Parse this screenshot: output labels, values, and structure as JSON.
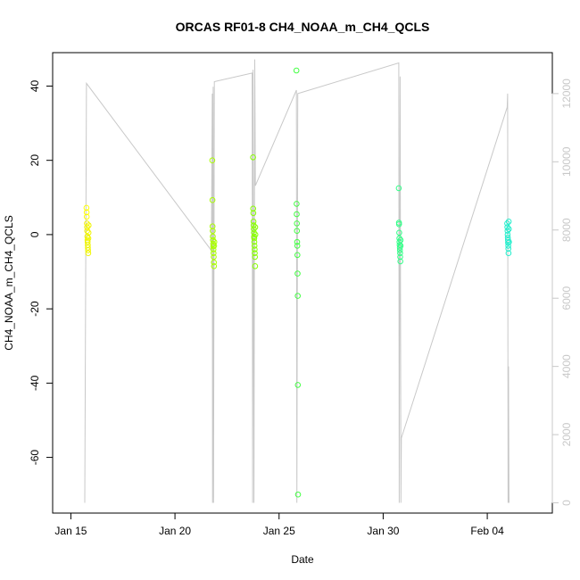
{
  "chart_data": {
    "type": "scatter",
    "title": "ORCAS RF01-8 CH4_NOAA_m_CH4_QCLS",
    "xlabel": "Date",
    "ylabel": "CH4_NOAA_m_CH4_QCLS",
    "x_axis": {
      "type": "date",
      "range": [
        "2016-01-14T03:00",
        "2016-02-07T03:00"
      ],
      "ticks": [
        {
          "date": "2016-01-15",
          "label": "Jan 15"
        },
        {
          "date": "2016-01-20",
          "label": "Jan 20"
        },
        {
          "date": "2016-01-25",
          "label": "Jan 25"
        },
        {
          "date": "2016-01-30",
          "label": "Jan 30"
        },
        {
          "date": "2016-02-04",
          "label": "Feb 04"
        }
      ]
    },
    "y_axis_left": {
      "range": [
        -75,
        49
      ],
      "ticks": [
        -60,
        -40,
        -20,
        0,
        20,
        40
      ]
    },
    "y_axis_right": {
      "range": [
        -300,
        13200
      ],
      "ticks": [
        0,
        2000,
        4000,
        6000,
        8000,
        10000,
        12000
      ],
      "color": "#c8c8c8"
    },
    "grid": false,
    "series": [
      {
        "marker": "open-circle",
        "axis": "left",
        "points": [
          {
            "date": "2016-01-15T18:00",
            "y": 7.2,
            "color": "#ffff00"
          },
          {
            "date": "2016-01-15T18:10",
            "y": 6.0,
            "color": "#ffff00"
          },
          {
            "date": "2016-01-15T18:20",
            "y": 4.8,
            "color": "#ffff00"
          },
          {
            "date": "2016-01-15T18:30",
            "y": 3.0,
            "color": "#f5f500"
          },
          {
            "date": "2016-01-15T18:40",
            "y": 2.0,
            "color": "#f5f500"
          },
          {
            "date": "2016-01-15T18:50",
            "y": 1.0,
            "color": "#f5f500"
          },
          {
            "date": "2016-01-15T19:00",
            "y": -0.5,
            "color": "#f0f500"
          },
          {
            "date": "2016-01-15T19:10",
            "y": -1.5,
            "color": "#f0f500"
          },
          {
            "date": "2016-01-15T19:20",
            "y": -2.0,
            "color": "#f0f500"
          },
          {
            "date": "2016-01-15T19:30",
            "y": -2.8,
            "color": "#f0f500"
          },
          {
            "date": "2016-01-15T19:40",
            "y": -3.5,
            "color": "#f0f500"
          },
          {
            "date": "2016-01-15T19:50",
            "y": -4.2,
            "color": "#f0f500"
          },
          {
            "date": "2016-01-15T20:00",
            "y": -5.0,
            "color": "#f0f500"
          },
          {
            "date": "2016-01-15T20:10",
            "y": -1.0,
            "color": "#f0f500"
          },
          {
            "date": "2016-01-15T20:20",
            "y": 0.5,
            "color": "#f0f500"
          },
          {
            "date": "2016-01-15T20:30",
            "y": 2.5,
            "color": "#f0f500"
          },
          {
            "date": "2016-01-21T19:00",
            "y": 20.0,
            "color": "#aaff00"
          },
          {
            "date": "2016-01-21T19:10",
            "y": 9.3,
            "color": "#aaff00"
          },
          {
            "date": "2016-01-21T19:20",
            "y": 2.2,
            "color": "#aaff00"
          },
          {
            "date": "2016-01-21T19:30",
            "y": 1.0,
            "color": "#aaff00"
          },
          {
            "date": "2016-01-21T19:40",
            "y": -0.5,
            "color": "#aaff00"
          },
          {
            "date": "2016-01-21T19:50",
            "y": -1.5,
            "color": "#aaff00"
          },
          {
            "date": "2016-01-21T20:00",
            "y": -2.5,
            "color": "#aaff00"
          },
          {
            "date": "2016-01-21T20:10",
            "y": -3.2,
            "color": "#aaff00"
          },
          {
            "date": "2016-01-21T20:20",
            "y": -4.0,
            "color": "#aaff00"
          },
          {
            "date": "2016-01-21T20:30",
            "y": -5.0,
            "color": "#aaff00"
          },
          {
            "date": "2016-01-21T20:40",
            "y": -6.0,
            "color": "#aaff00"
          },
          {
            "date": "2016-01-21T20:50",
            "y": -7.5,
            "color": "#aaff00"
          },
          {
            "date": "2016-01-21T21:00",
            "y": -8.5,
            "color": "#aaff00"
          },
          {
            "date": "2016-01-21T21:10",
            "y": -3.0,
            "color": "#aaff00"
          },
          {
            "date": "2016-01-21T21:20",
            "y": -2.0,
            "color": "#aaff00"
          },
          {
            "date": "2016-01-23T18:00",
            "y": 20.8,
            "color": "#88ff00"
          },
          {
            "date": "2016-01-23T18:10",
            "y": 7.0,
            "color": "#88ff00"
          },
          {
            "date": "2016-01-23T18:20",
            "y": 5.8,
            "color": "#88ff00"
          },
          {
            "date": "2016-01-23T18:30",
            "y": 3.5,
            "color": "#88ff00"
          },
          {
            "date": "2016-01-23T18:40",
            "y": 2.5,
            "color": "#88ff00"
          },
          {
            "date": "2016-01-23T18:50",
            "y": 1.5,
            "color": "#88ff00"
          },
          {
            "date": "2016-01-23T19:00",
            "y": 0.5,
            "color": "#88ff00"
          },
          {
            "date": "2016-01-23T19:10",
            "y": -0.5,
            "color": "#88ff00"
          },
          {
            "date": "2016-01-23T19:20",
            "y": -1.0,
            "color": "#88ff00"
          },
          {
            "date": "2016-01-23T19:30",
            "y": -2.0,
            "color": "#88ff00"
          },
          {
            "date": "2016-01-23T19:40",
            "y": -3.0,
            "color": "#88ff00"
          },
          {
            "date": "2016-01-23T19:50",
            "y": -4.0,
            "color": "#88ff00"
          },
          {
            "date": "2016-01-23T20:00",
            "y": -5.0,
            "color": "#88ff00"
          },
          {
            "date": "2016-01-23T20:10",
            "y": -6.0,
            "color": "#88ff00"
          },
          {
            "date": "2016-01-23T20:20",
            "y": -8.5,
            "color": "#88ff00"
          },
          {
            "date": "2016-01-23T20:30",
            "y": 2.0,
            "color": "#88ff00"
          },
          {
            "date": "2016-01-23T20:40",
            "y": 0.0,
            "color": "#88ff00"
          },
          {
            "date": "2016-01-25T20:00",
            "y": 44.2,
            "color": "#44ff44"
          },
          {
            "date": "2016-01-25T20:10",
            "y": 8.3,
            "color": "#44ff44"
          },
          {
            "date": "2016-01-25T20:20",
            "y": 5.5,
            "color": "#44ff44"
          },
          {
            "date": "2016-01-25T20:30",
            "y": 3.0,
            "color": "#44ff44"
          },
          {
            "date": "2016-01-25T20:40",
            "y": 1.0,
            "color": "#44ff44"
          },
          {
            "date": "2016-01-25T20:50",
            "y": -2.0,
            "color": "#44ff44"
          },
          {
            "date": "2016-01-25T21:00",
            "y": -3.0,
            "color": "#44ff44"
          },
          {
            "date": "2016-01-25T21:10",
            "y": -5.5,
            "color": "#44ff44"
          },
          {
            "date": "2016-01-25T21:20",
            "y": -10.5,
            "color": "#44ff44"
          },
          {
            "date": "2016-01-25T21:30",
            "y": -16.5,
            "color": "#44ff44"
          },
          {
            "date": "2016-01-25T21:40",
            "y": -40.5,
            "color": "#44ff44"
          },
          {
            "date": "2016-01-25T21:50",
            "y": -70.0,
            "color": "#44ff44"
          },
          {
            "date": "2016-01-30T18:00",
            "y": 12.5,
            "color": "#33ff88"
          },
          {
            "date": "2016-01-30T18:10",
            "y": 3.2,
            "color": "#33ff88"
          },
          {
            "date": "2016-01-30T18:20",
            "y": 2.8,
            "color": "#33ff88"
          },
          {
            "date": "2016-01-30T18:30",
            "y": 0.5,
            "color": "#33ff88"
          },
          {
            "date": "2016-01-30T18:40",
            "y": -1.0,
            "color": "#33ff88"
          },
          {
            "date": "2016-01-30T18:50",
            "y": -2.0,
            "color": "#33ff88"
          },
          {
            "date": "2016-01-30T19:00",
            "y": -2.8,
            "color": "#33ff88"
          },
          {
            "date": "2016-01-30T19:10",
            "y": -3.5,
            "color": "#33ff88"
          },
          {
            "date": "2016-01-30T19:20",
            "y": -4.2,
            "color": "#33ff88"
          },
          {
            "date": "2016-01-30T19:30",
            "y": -5.0,
            "color": "#33ff88"
          },
          {
            "date": "2016-01-30T19:40",
            "y": -6.0,
            "color": "#33ff88"
          },
          {
            "date": "2016-01-30T19:50",
            "y": -7.2,
            "color": "#33ff88"
          },
          {
            "date": "2016-01-30T20:00",
            "y": -1.5,
            "color": "#33ff88"
          },
          {
            "date": "2016-01-30T20:10",
            "y": -3.0,
            "color": "#33ff88"
          },
          {
            "date": "2016-02-04T23:00",
            "y": 3.0,
            "color": "#22eecc"
          },
          {
            "date": "2016-02-04T23:10",
            "y": 2.0,
            "color": "#22eecc"
          },
          {
            "date": "2016-02-04T23:20",
            "y": 1.0,
            "color": "#22eecc"
          },
          {
            "date": "2016-02-04T23:30",
            "y": 0.0,
            "color": "#22eecc"
          },
          {
            "date": "2016-02-04T23:40",
            "y": -0.8,
            "color": "#22eecc"
          },
          {
            "date": "2016-02-04T23:50",
            "y": -1.5,
            "color": "#22eecc"
          },
          {
            "date": "2016-02-05T00:00",
            "y": -2.2,
            "color": "#22eecc"
          },
          {
            "date": "2016-02-05T00:10",
            "y": -3.0,
            "color": "#22eecc"
          },
          {
            "date": "2016-02-05T00:20",
            "y": -3.8,
            "color": "#22eecc"
          },
          {
            "date": "2016-02-05T00:30",
            "y": -5.0,
            "color": "#22eecc"
          },
          {
            "date": "2016-02-05T00:40",
            "y": 3.5,
            "color": "#22eecc"
          },
          {
            "date": "2016-02-05T00:50",
            "y": 1.5,
            "color": "#22eecc"
          },
          {
            "date": "2016-02-05T01:00",
            "y": -2.0,
            "color": "#22eecc"
          }
        ]
      },
      {
        "marker": "line",
        "axis": "right",
        "color": "#c8c8c8",
        "points": [
          {
            "date": "2016-01-15T16:00",
            "y": 0
          },
          {
            "date": "2016-01-15T18:00",
            "y": 12300
          },
          {
            "date": "2016-01-21T18:00",
            "y": 7400
          },
          {
            "date": "2016-01-21T19:00",
            "y": 12000
          },
          {
            "date": "2016-01-21T19:20",
            "y": 0
          },
          {
            "date": "2016-01-21T20:00",
            "y": 12200
          },
          {
            "date": "2016-01-21T20:30",
            "y": 0
          },
          {
            "date": "2016-01-21T21:20",
            "y": 12350
          },
          {
            "date": "2016-01-23T17:00",
            "y": 12600
          },
          {
            "date": "2016-01-23T17:30",
            "y": 0
          },
          {
            "date": "2016-01-23T18:00",
            "y": 12700
          },
          {
            "date": "2016-01-23T19:00",
            "y": 0
          },
          {
            "date": "2016-01-23T20:00",
            "y": 13000
          },
          {
            "date": "2016-01-23T20:40",
            "y": 9300
          },
          {
            "date": "2016-01-25T20:00",
            "y": 12100
          },
          {
            "date": "2016-01-25T20:30",
            "y": 0
          },
          {
            "date": "2016-01-25T21:30",
            "y": 12000
          },
          {
            "date": "2016-01-30T18:00",
            "y": 12900
          },
          {
            "date": "2016-01-30T18:30",
            "y": 0
          },
          {
            "date": "2016-01-30T19:30",
            "y": 12500
          },
          {
            "date": "2016-01-30T20:30",
            "y": 0
          },
          {
            "date": "2016-01-30T21:00",
            "y": 1900
          },
          {
            "date": "2016-02-04T23:00",
            "y": 11600
          },
          {
            "date": "2016-02-04T23:30",
            "y": 12000
          },
          {
            "date": "2016-02-05T00:00",
            "y": 0
          },
          {
            "date": "2016-02-05T00:30",
            "y": 4000
          },
          {
            "date": "2016-02-05T01:00",
            "y": 0
          }
        ]
      }
    ]
  }
}
